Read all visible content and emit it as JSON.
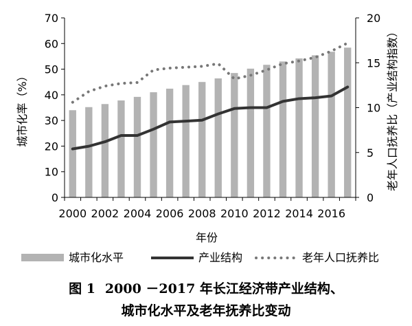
{
  "chart_data": {
    "type": "bar-line",
    "x": [
      2000,
      2001,
      2002,
      2003,
      2004,
      2005,
      2006,
      2007,
      2008,
      2009,
      2010,
      2011,
      2012,
      2013,
      2014,
      2015,
      2016,
      2017
    ],
    "x_tick_labels": [
      "2000",
      "2002",
      "2004",
      "2006",
      "2008",
      "2010",
      "2012",
      "2014",
      "2016"
    ],
    "xlabel": "年份",
    "ylabel_left": "城市化率（%）",
    "ylabel_right": "老年人口抚养比（产业结构指数）",
    "ylim_left": [
      0,
      70
    ],
    "ylim_right": [
      0,
      20
    ],
    "yticks_left": [
      "0",
      "10",
      "20",
      "30",
      "40",
      "50",
      "60",
      "70"
    ],
    "yticks_right": [
      "0",
      "5",
      "10",
      "15",
      "20"
    ],
    "grid": false,
    "legend_position": "bottom",
    "series": [
      {
        "name": "城市化水平",
        "kind": "bar",
        "axis": "left",
        "color": "#b3b3b3",
        "values": [
          34.0,
          35.2,
          36.4,
          37.8,
          39.2,
          41.0,
          42.4,
          43.8,
          45.0,
          46.4,
          48.5,
          50.2,
          51.7,
          53.0,
          54.2,
          55.4,
          56.8,
          58.4
        ]
      },
      {
        "name": "产业结构",
        "kind": "line",
        "axis": "right",
        "color": "#333333",
        "values": [
          5.4,
          5.7,
          6.2,
          6.9,
          6.9,
          7.6,
          8.4,
          8.5,
          8.6,
          9.3,
          9.9,
          10.0,
          10.0,
          10.7,
          11.0,
          11.1,
          11.3,
          12.3
        ]
      },
      {
        "name": "老年人口抚养比",
        "kind": "dotted-line",
        "axis": "right",
        "color": "#777777",
        "values": [
          10.6,
          11.8,
          12.4,
          12.7,
          12.8,
          14.2,
          14.4,
          14.5,
          14.6,
          14.9,
          13.2,
          13.6,
          14.2,
          14.9,
          15.2,
          15.6,
          16.3,
          17.2
        ]
      }
    ]
  },
  "caption": {
    "figure_number": "图 1",
    "line1": "2000 －2017 年长江经济带产业结构、",
    "line2": "城市化水平及老年抚养比变动"
  }
}
